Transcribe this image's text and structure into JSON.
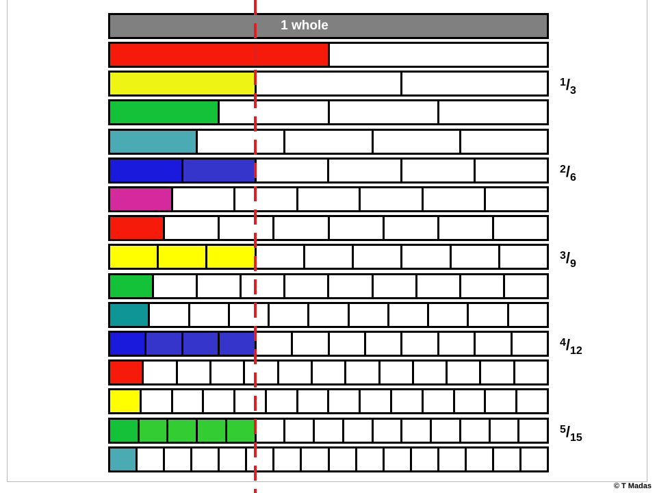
{
  "title": "1 whole",
  "copyright": "© T Madas",
  "rows": [
    {
      "denominator": 2,
      "shaded": 1,
      "colors": [
        "#f51a0a"
      ]
    },
    {
      "denominator": 3,
      "shaded": 1,
      "colors": [
        "#eef515"
      ]
    },
    {
      "denominator": 4,
      "shaded": 1,
      "colors": [
        "#14c23a"
      ]
    },
    {
      "denominator": 5,
      "shaded": 1,
      "colors": [
        "#4aabb5"
      ]
    },
    {
      "denominator": 6,
      "shaded": 2,
      "colors": [
        "#1a1adc",
        "#3535cc"
      ]
    },
    {
      "denominator": 7,
      "shaded": 1,
      "colors": [
        "#d52a9e"
      ]
    },
    {
      "denominator": 8,
      "shaded": 1,
      "colors": [
        "#f51a0a"
      ]
    },
    {
      "denominator": 9,
      "shaded": 3,
      "colors": [
        "#ffff00",
        "#ffff00",
        "#ffff00"
      ]
    },
    {
      "denominator": 10,
      "shaded": 1,
      "colors": [
        "#14c23a"
      ]
    },
    {
      "denominator": 11,
      "shaded": 1,
      "colors": [
        "#0e9696"
      ]
    },
    {
      "denominator": 12,
      "shaded": 4,
      "colors": [
        "#1a1adc",
        "#3535cc",
        "#3535cc",
        "#3535cc"
      ]
    },
    {
      "denominator": 13,
      "shaded": 1,
      "colors": [
        "#f51a0a"
      ]
    },
    {
      "denominator": 14,
      "shaded": 1,
      "colors": [
        "#ffff00"
      ]
    },
    {
      "denominator": 15,
      "shaded": 5,
      "colors": [
        "#14c23a",
        "#33cc33",
        "#33cc33",
        "#33cc33",
        "#33cc33"
      ]
    },
    {
      "denominator": 16,
      "shaded": 1,
      "colors": [
        "#4aabb5"
      ]
    }
  ],
  "fractions": [
    {
      "numerator": "1",
      "denominator": "3",
      "row": 1
    },
    {
      "numerator": "2",
      "denominator": "6",
      "row": 4
    },
    {
      "numerator": "3",
      "denominator": "9",
      "row": 7
    },
    {
      "numerator": "4",
      "denominator": "12",
      "row": 10
    },
    {
      "numerator": "5",
      "denominator": "15",
      "row": 13
    }
  ],
  "guide_color": "#e02020"
}
